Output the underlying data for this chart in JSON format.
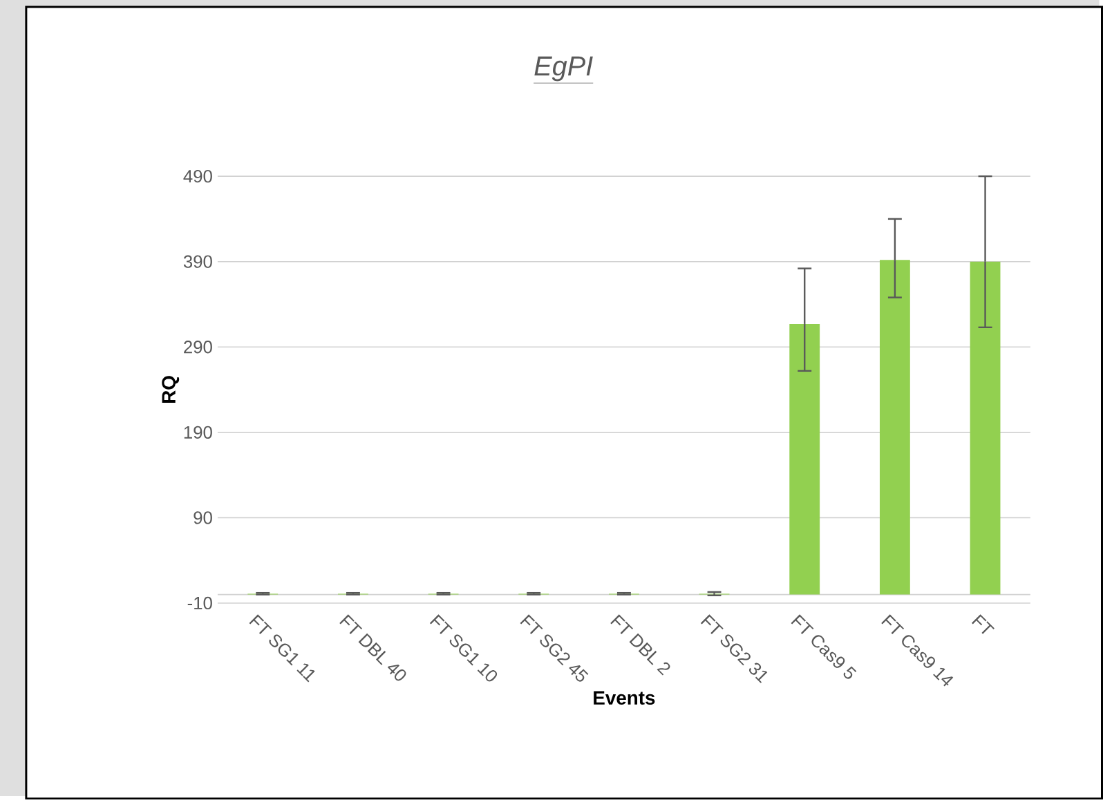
{
  "chart_data": {
    "type": "bar",
    "title": "*EgPI*",
    "xlabel": "Events",
    "ylabel": "RQ",
    "categories": [
      "FT SG1 11",
      "FT DBL 40",
      "FT SG1 10",
      "FT SG2 45",
      "FT DBL 2",
      "FT SG2 31",
      "FT Cas9 5",
      "FT Cas9 14",
      "FT"
    ],
    "values": [
      1,
      1,
      1,
      1,
      1,
      1,
      317,
      392,
      390
    ],
    "errors": [
      1,
      1,
      1,
      1,
      1,
      2,
      [
        262,
        382
      ],
      [
        348,
        440
      ],
      [
        313,
        490
      ]
    ],
    "color": "#92d050",
    "ylim": [
      -10,
      490
    ],
    "yticks": [
      -10,
      90,
      190,
      290,
      390,
      490
    ],
    "grid": "y"
  }
}
